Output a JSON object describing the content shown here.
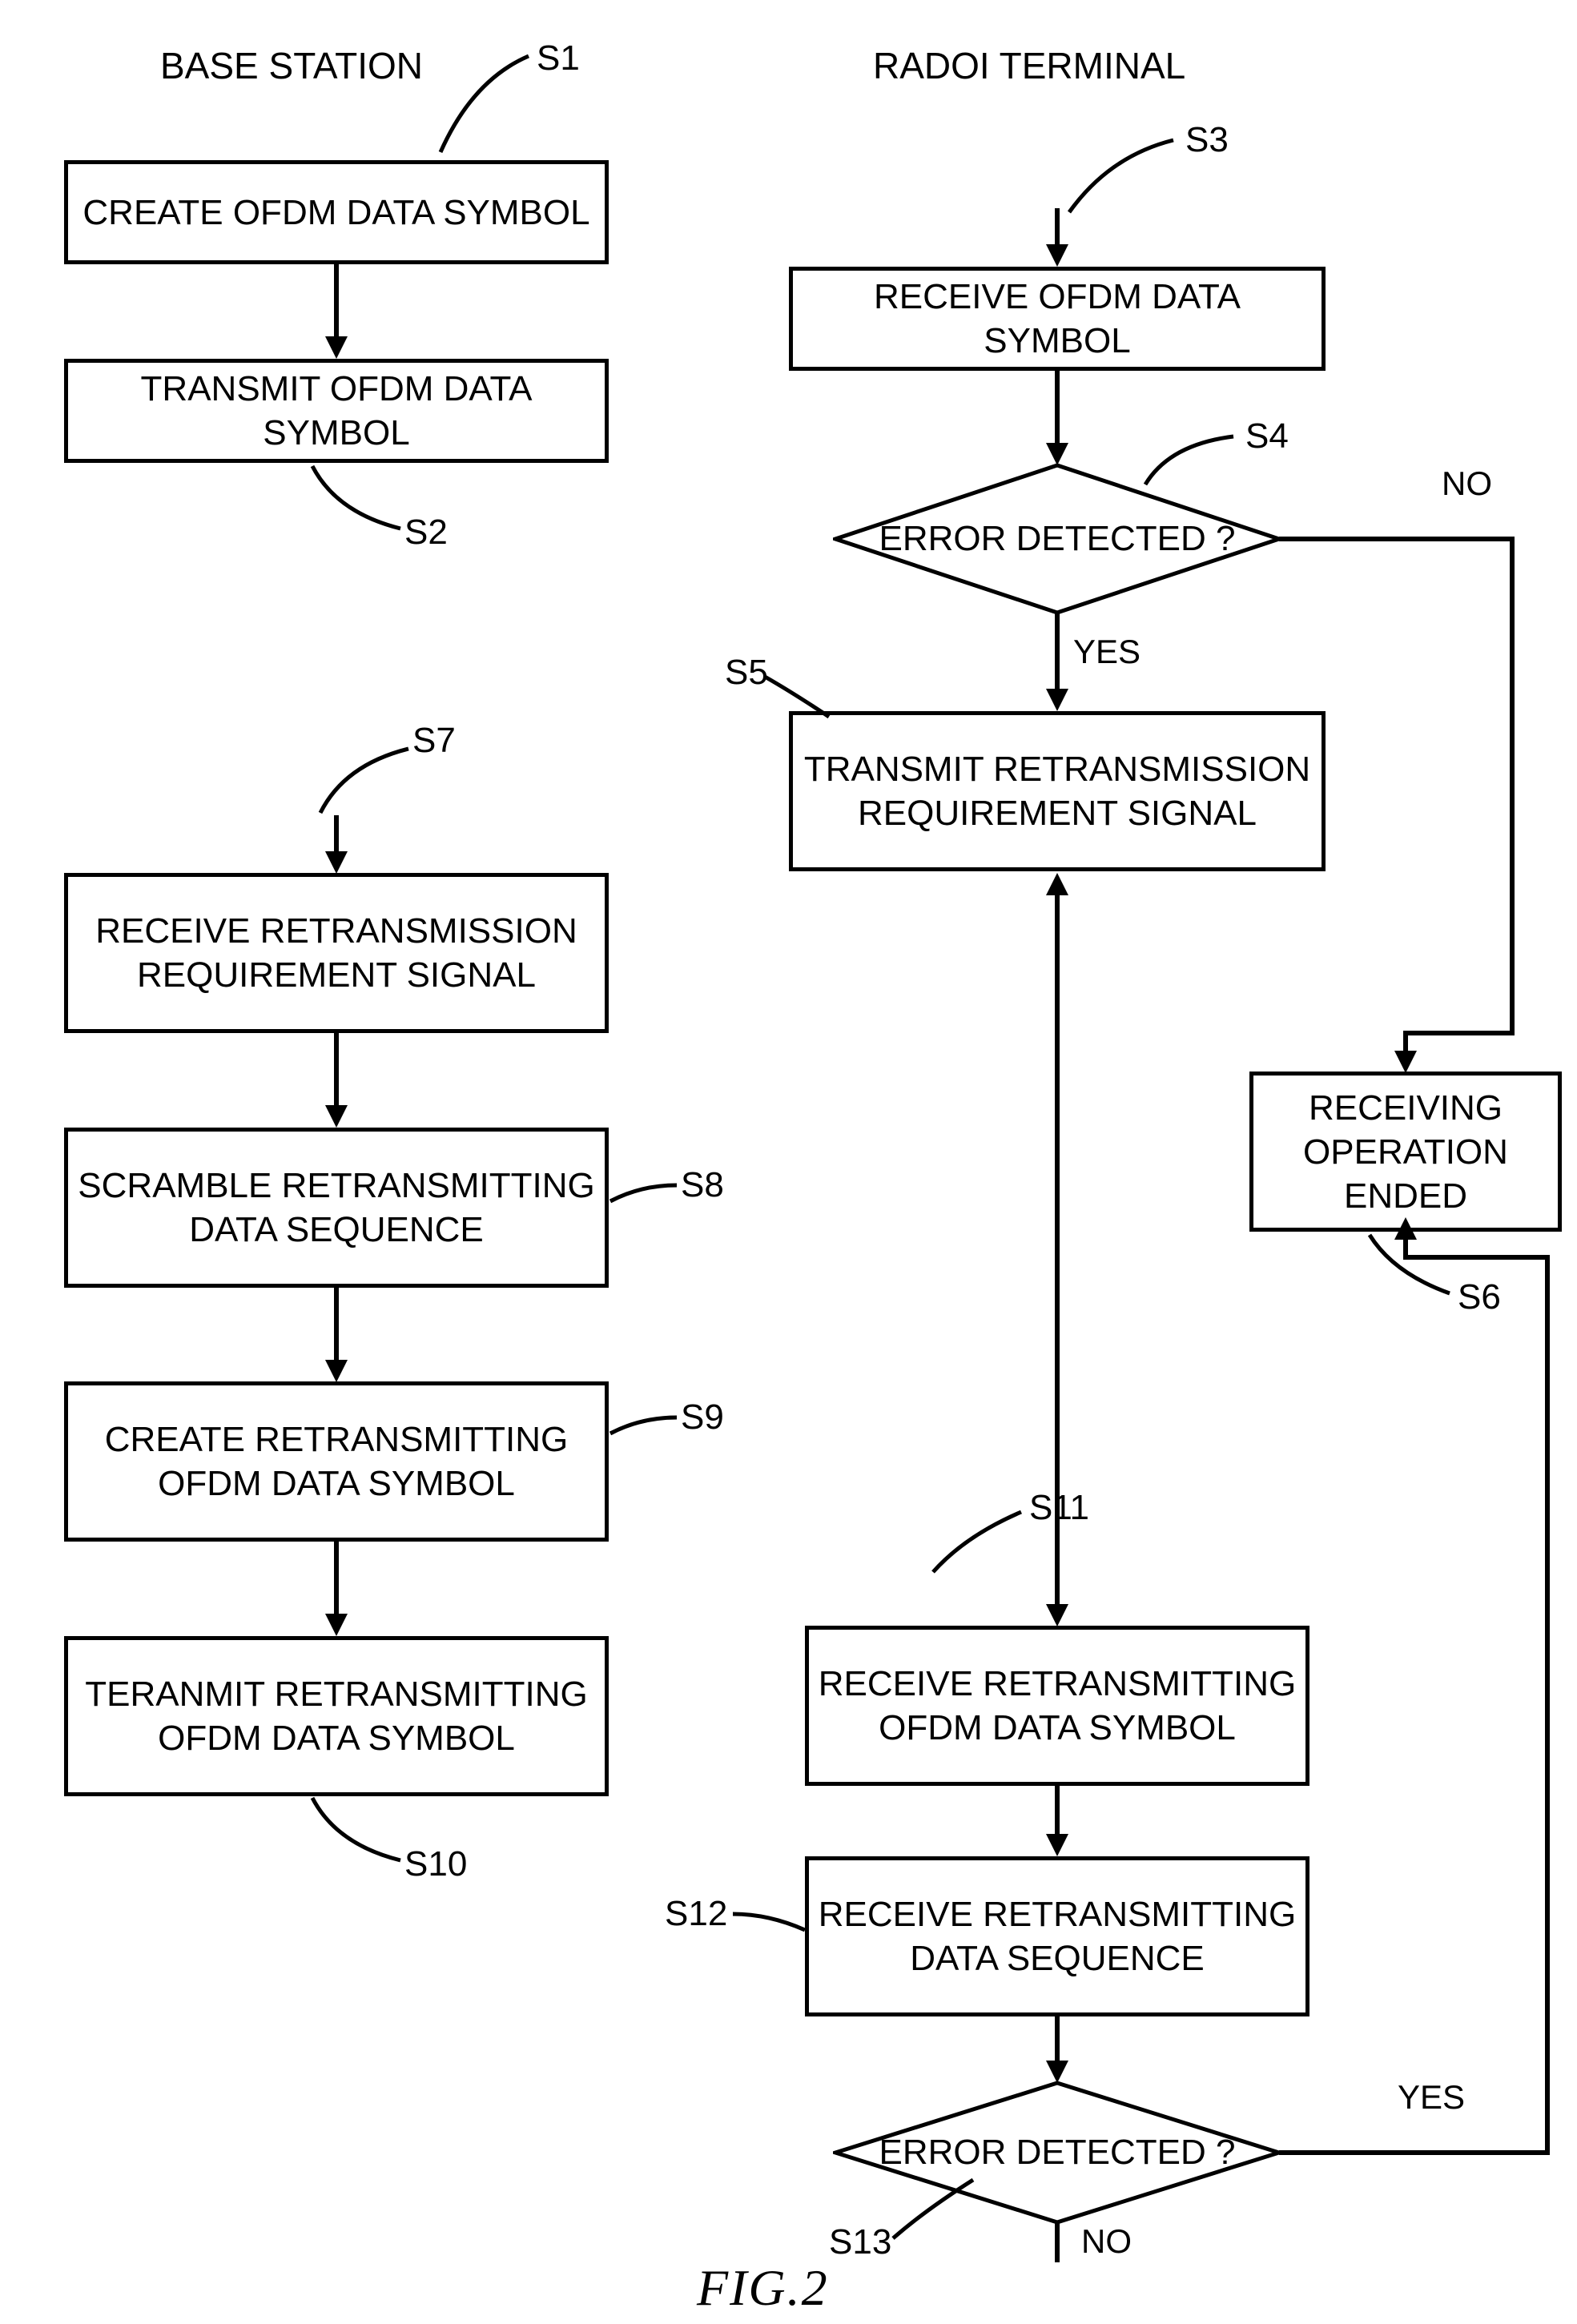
{
  "colors": {
    "stroke": "#000000",
    "bg": "#ffffff"
  },
  "typography": {
    "header_fontsize": 46,
    "box_fontsize": 44,
    "step_fontsize": 44,
    "branch_fontsize": 42,
    "caption_fontsize": 64
  },
  "layout": {
    "stroke_width": 5,
    "arrow_width": 6,
    "arrowhead_size": 28
  },
  "headers": {
    "left": "BASE STATION",
    "right": "RADOI TERMINAL"
  },
  "steps": {
    "s1": {
      "id": "S1",
      "text": "CREATE OFDM DATA SYMBOL"
    },
    "s2": {
      "id": "S2",
      "text": "TRANSMIT OFDM DATA SYMBOL"
    },
    "s3": {
      "id": "S3",
      "text": "RECEIVE OFDM DATA SYMBOL"
    },
    "s4": {
      "id": "S4",
      "text": "ERROR DETECTED ?"
    },
    "s5": {
      "id": "S5",
      "text": "TRANSMIT RETRANSMISSION\nREQUIREMENT SIGNAL"
    },
    "s6": {
      "id": "S6",
      "text": "RECEIVING\nOPERATION ENDED"
    },
    "s7": {
      "id": "S7",
      "text": "RECEIVE RETRANSMISSION\nREQUIREMENT SIGNAL"
    },
    "s8": {
      "id": "S8",
      "text": "SCRAMBLE RETRANSMITTING\nDATA SEQUENCE"
    },
    "s9": {
      "id": "S9",
      "text": "CREATE RETRANSMITTING\nOFDM DATA SYMBOL"
    },
    "s10": {
      "id": "S10",
      "text": "TERANMIT RETRANSMITTING\nOFDM DATA SYMBOL"
    },
    "s11": {
      "id": "S11",
      "text": "RECEIVE RETRANSMITTING\nOFDM DATA SYMBOL"
    },
    "s12": {
      "id": "S12",
      "text": "RECEIVE RETRANSMITTING\nDATA SEQUENCE"
    },
    "s13": {
      "id": "S13",
      "text": "ERROR DETECTED ?"
    }
  },
  "branches": {
    "yes": "YES",
    "no": "NO"
  },
  "caption": "FIG.2"
}
